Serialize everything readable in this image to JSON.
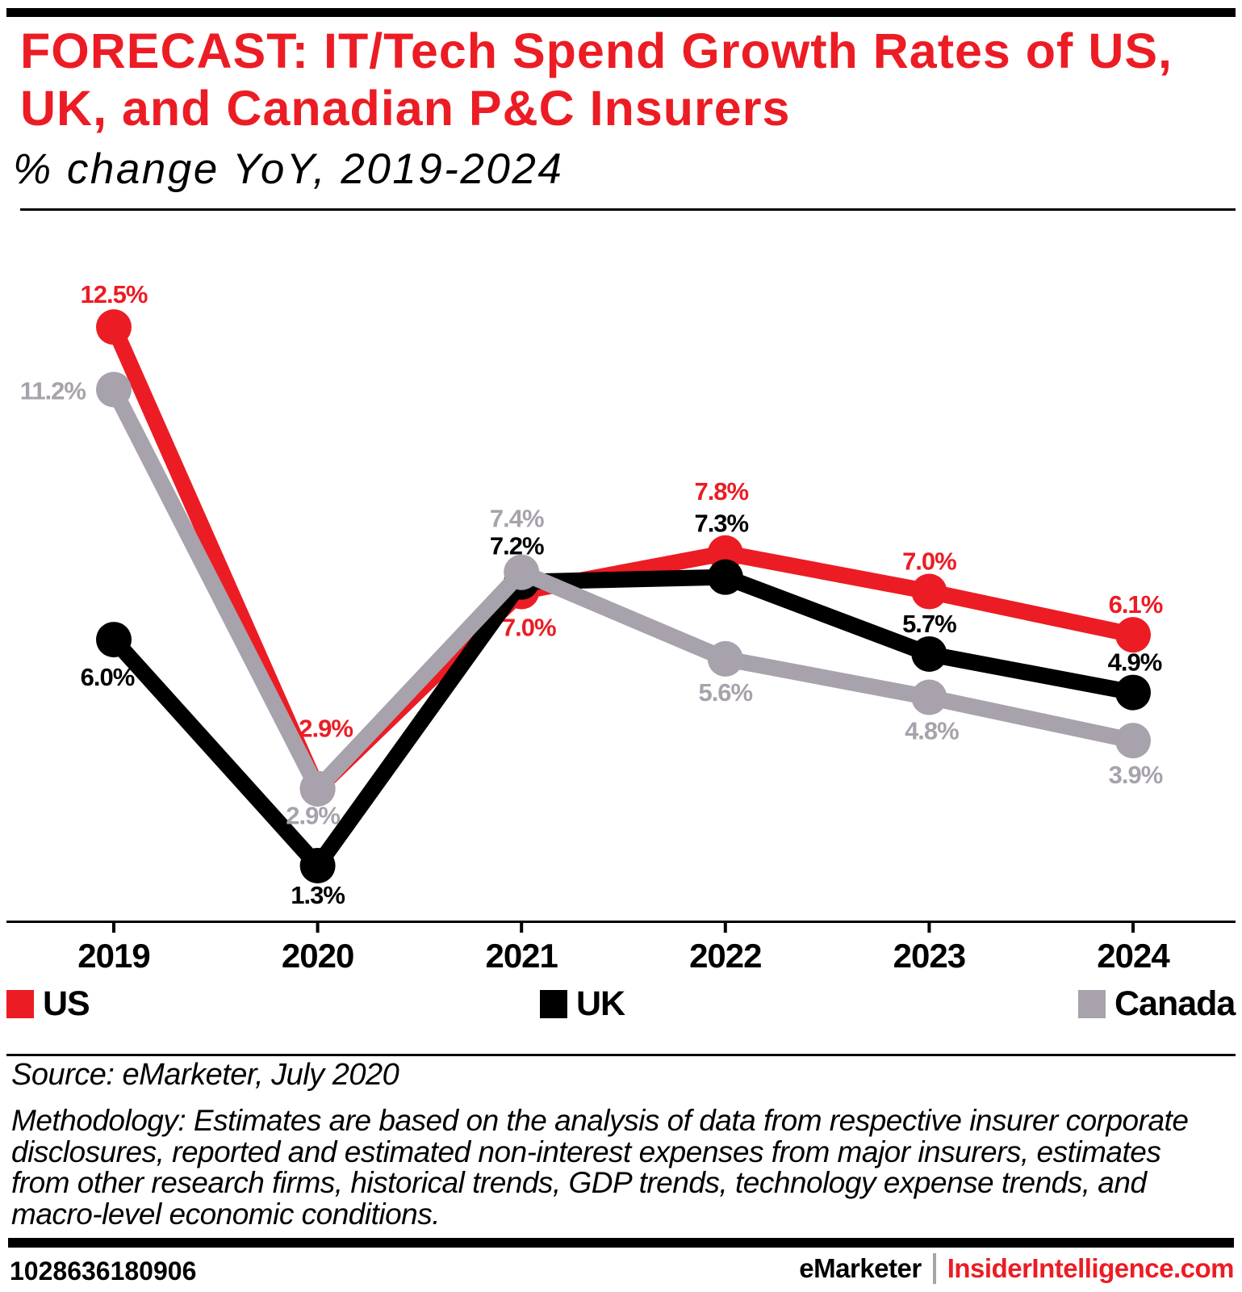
{
  "header": {
    "title_line1": "FORECAST: IT/Tech Spend Growth Rates of US,",
    "title_line2": "UK, and Canadian P&C Insurers",
    "subtitle": "% change YoY, 2019-2024"
  },
  "chart_data": {
    "type": "line",
    "categories": [
      "2019",
      "2020",
      "2021",
      "2022",
      "2023",
      "2024"
    ],
    "series": [
      {
        "name": "US",
        "color": "#ec1c24",
        "values": [
          12.5,
          2.9,
          7.0,
          7.8,
          7.0,
          6.1
        ]
      },
      {
        "name": "UK",
        "color": "#000000",
        "values": [
          6.0,
          1.3,
          7.2,
          7.3,
          5.7,
          4.9
        ]
      },
      {
        "name": "Canada",
        "color": "#a7a2ac",
        "values": [
          11.2,
          2.9,
          7.4,
          5.6,
          4.8,
          3.9
        ]
      }
    ],
    "value_suffix": "%",
    "ylim": [
      0,
      13.5
    ],
    "grid": false,
    "legend_position": "bottom"
  },
  "legend": {
    "items": [
      {
        "label": "US",
        "color": "#ec1c24"
      },
      {
        "label": "UK",
        "color": "#000000"
      },
      {
        "label": "Canada",
        "color": "#a7a2ac"
      }
    ]
  },
  "footnote": {
    "source": "Source: eMarketer, July 2020",
    "methodology_lines": [
      "Methodology: Estimates are based on the analysis of data from respective insurer corporate",
      "disclosures, reported and estimated non-interest expenses from major insurers, estimates",
      "from other research firms, historical trends, GDP trends, technology expense trends, and",
      "macro-level economic conditions."
    ]
  },
  "footer": {
    "id": "1028636180906",
    "brand_primary": "eMarketer",
    "separator": "|",
    "brand_secondary": "InsiderIntelligence.com"
  }
}
